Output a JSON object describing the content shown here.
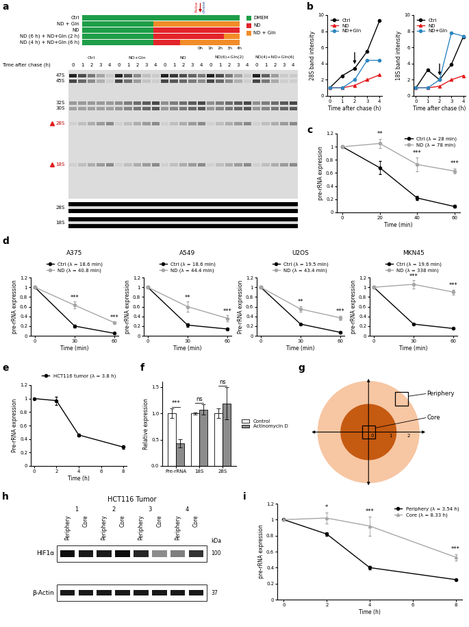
{
  "panel_labels": [
    "a",
    "b",
    "c",
    "d",
    "e",
    "f",
    "g",
    "h",
    "i"
  ],
  "gel": {
    "scheme_rows": [
      {
        "label": "Ctrl",
        "segments": [
          "DMEM"
        ]
      },
      {
        "label": "ND + Gln",
        "segments": [
          "DMEM",
          "ND + Gln"
        ]
      },
      {
        "label": "ND",
        "segments": [
          "DMEM",
          "ND"
        ]
      },
      {
        "label": "ND (6 h) + ND+Gln (2 h)",
        "segments": [
          "DMEM",
          "ND",
          "ND + Gln"
        ]
      },
      {
        "label": "ND (4 h) + ND+Gln (6 h)",
        "segments": [
          "DMEM",
          "ND",
          "ND + Gln"
        ]
      }
    ],
    "scheme_legend": [
      {
        "name": "DMEM",
        "color": "#1e9e48"
      },
      {
        "name": "ND",
        "color": "#e3242b"
      },
      {
        "name": "ND + Gln",
        "color": "#f28c28"
      }
    ],
    "pulse_label": "Pulse",
    "chase_label": "chase",
    "time_points": [
      "0h",
      "1h",
      "2h",
      "3h",
      "4h"
    ],
    "lane_axis_label": "Time after chase (h)",
    "groups": [
      "Ctrl",
      "ND+Gln",
      "ND",
      "ND(6)+Gln(2)",
      "ND(4)+ND+Gln(6)"
    ],
    "lanes": [
      "0",
      "1",
      "2",
      "3",
      "4"
    ],
    "bands": [
      "47S",
      "45S",
      "32S",
      "30S",
      "28S",
      "18S"
    ],
    "marked_bands": [
      "28S",
      "18S"
    ],
    "loading_strips": [
      "28S",
      "18S"
    ]
  },
  "chart_data": [
    {
      "type": "line",
      "xlabel": "Time after chase (h)",
      "ylabel": "28S band intensity",
      "x": [
        0,
        1,
        2,
        3,
        4
      ],
      "xlim": [
        -0.2,
        4.2
      ],
      "xticks": [
        0,
        1,
        2,
        3,
        4
      ],
      "ylim": [
        0,
        10
      ],
      "yticks": [
        0,
        2,
        4,
        6,
        8,
        10
      ],
      "legend": "upper left",
      "arrow_at": 2,
      "series": [
        {
          "name": "Ctrl",
          "color": "#000000",
          "marker": "circle",
          "values": [
            1,
            2.5,
            3.4,
            5.5,
            9.3
          ]
        },
        {
          "name": "ND",
          "color": "#e41a1c",
          "marker": "triangle",
          "values": [
            1,
            1,
            1.3,
            2,
            2.6
          ]
        },
        {
          "name": "ND+Gln",
          "color": "#2e86c1",
          "marker": "circle",
          "values": [
            1,
            1,
            2,
            4.4,
            4.4
          ]
        }
      ]
    },
    {
      "type": "line",
      "xlabel": "Time after chase (h)",
      "ylabel": "18S band intensity",
      "x": [
        0,
        1,
        2,
        3,
        4
      ],
      "xlim": [
        -0.2,
        4.2
      ],
      "xticks": [
        0,
        1,
        2,
        3,
        4
      ],
      "ylim": [
        0,
        10
      ],
      "yticks": [
        0,
        2,
        4,
        6,
        8,
        10
      ],
      "legend": "upper left",
      "arrow_at": 2,
      "series": [
        {
          "name": "Ctrl",
          "color": "#000000",
          "marker": "circle",
          "values": [
            1,
            3.2,
            2,
            3.9,
            7.3
          ]
        },
        {
          "name": "ND",
          "color": "#e41a1c",
          "marker": "triangle",
          "values": [
            1,
            1,
            1.2,
            2,
            2.5
          ]
        },
        {
          "name": "ND+Gln",
          "color": "#2e86c1",
          "marker": "circle",
          "values": [
            1,
            1,
            2,
            7.8,
            7.4
          ]
        }
      ]
    },
    {
      "type": "line",
      "xlabel": "Time (min)",
      "ylabel": "pre-rRNA expression",
      "x": [
        0,
        20,
        40,
        60
      ],
      "xlim": [
        -3,
        63
      ],
      "xticks": [
        0,
        20,
        40,
        60
      ],
      "ylim": [
        0,
        1.2
      ],
      "yticks": [
        0,
        0.2,
        0.4,
        0.6,
        0.8,
        1,
        1.2
      ],
      "legend": "upper right",
      "significance": [
        null,
        "**",
        "***",
        "***"
      ],
      "series": [
        {
          "name": "Ctrl (λ = 28 min)",
          "color": "#000000",
          "marker": "circle",
          "values": [
            1,
            0.68,
            0.22,
            0.09
          ],
          "errors": [
            0,
            0.1,
            0.03,
            0.02
          ]
        },
        {
          "name": "ND (λ = 78 min)",
          "color": "#a6a6a6",
          "marker": "circle",
          "values": [
            1,
            1.05,
            0.73,
            0.63
          ],
          "errors": [
            0,
            0.07,
            0.1,
            0.04
          ]
        }
      ]
    },
    {
      "type": "line",
      "title": "A375",
      "xlabel": "Time (min)",
      "ylabel": "pre-rRNA expression",
      "x": [
        0,
        30,
        60
      ],
      "xlim": [
        -3,
        63
      ],
      "xticks": [
        0,
        30,
        60
      ],
      "ylim": [
        0,
        1.2
      ],
      "yticks": [
        0,
        0.2,
        0.4,
        0.6,
        0.8,
        1,
        1.2
      ],
      "legend": "top",
      "significance": [
        null,
        "***",
        "***"
      ],
      "series": [
        {
          "name": "Ctrl (λ = 18.6 min)",
          "color": "#000000",
          "marker": "circle",
          "values": [
            1,
            0.2,
            0.05
          ],
          "errors": [
            0,
            0.03,
            0.01
          ]
        },
        {
          "name": "ND (λ = 40.8 min)",
          "color": "#a6a6a6",
          "marker": "circle",
          "values": [
            1,
            0.63,
            0.27
          ],
          "errors": [
            0,
            0.07,
            0.02
          ]
        }
      ]
    },
    {
      "type": "line",
      "title": "A549",
      "xlabel": "Time (min)",
      "ylabel": "pre-rRNA expression",
      "x": [
        0,
        30,
        60
      ],
      "xlim": [
        -3,
        63
      ],
      "xticks": [
        0,
        30,
        60
      ],
      "ylim": [
        0,
        1.2
      ],
      "yticks": [
        0,
        0.2,
        0.4,
        0.6,
        0.8,
        1,
        1.2
      ],
      "legend": "top",
      "significance": [
        null,
        "**",
        "***"
      ],
      "series": [
        {
          "name": "Ctrl (λ = 18.6 min)",
          "color": "#000000",
          "marker": "circle",
          "values": [
            1,
            0.22,
            0.14
          ],
          "errors": [
            0,
            0.04,
            0.02
          ]
        },
        {
          "name": "ND (λ = 44.4 min)",
          "color": "#a6a6a6",
          "marker": "circle",
          "values": [
            1,
            0.6,
            0.36
          ],
          "errors": [
            0,
            0.1,
            0.06
          ]
        }
      ]
    },
    {
      "type": "line",
      "title": "U2OS",
      "xlabel": "Time (min)",
      "ylabel": "Pre-rRNA expression",
      "x": [
        0,
        30,
        60
      ],
      "xlim": [
        -3,
        63
      ],
      "xticks": [
        0,
        30,
        60
      ],
      "ylim": [
        0,
        1.2
      ],
      "yticks": [
        0,
        0.2,
        0.4,
        0.6,
        0.8,
        1,
        1.2
      ],
      "legend": "top",
      "significance": [
        null,
        "**",
        "***"
      ],
      "series": [
        {
          "name": "Ctrl (λ = 19.5 min)",
          "color": "#000000",
          "marker": "circle",
          "values": [
            1,
            0.24,
            0.07
          ],
          "errors": [
            0,
            0.02,
            0.01
          ]
        },
        {
          "name": "ND (λ = 43.4 min)",
          "color": "#a6a6a6",
          "marker": "circle",
          "values": [
            1,
            0.55,
            0.37
          ],
          "errors": [
            0,
            0.06,
            0.04
          ]
        }
      ]
    },
    {
      "type": "line",
      "title": "MKN45",
      "xlabel": "Time (min)",
      "ylabel": "pre-rRNA expression",
      "x": [
        0,
        30,
        60
      ],
      "xlim": [
        -3,
        63
      ],
      "xticks": [
        0,
        30,
        60
      ],
      "ylim": [
        0,
        1.2
      ],
      "yticks": [
        0,
        0.2,
        0.4,
        0.6,
        0.8,
        1,
        1.2
      ],
      "legend": "top",
      "significance": [
        null,
        "***",
        "***"
      ],
      "series": [
        {
          "name": "Ctrl (λ = 19.6 min)",
          "color": "#000000",
          "marker": "circle",
          "values": [
            1,
            0.24,
            0.15
          ],
          "errors": [
            0,
            0.01,
            0.01
          ]
        },
        {
          "name": "ND (λ = 338 min)",
          "color": "#a6a6a6",
          "marker": "circle",
          "values": [
            1,
            1.06,
            0.9
          ],
          "errors": [
            0,
            0.08,
            0.05
          ]
        }
      ]
    },
    {
      "type": "line",
      "xlabel": "Time (h)",
      "ylabel": "Pre-rRNA expression",
      "x": [
        0,
        2,
        4,
        8
      ],
      "xlim": [
        -0.3,
        8.3
      ],
      "xticks": [
        0,
        2,
        4,
        6,
        8
      ],
      "ylim": [
        0,
        1.2
      ],
      "yticks": [
        0,
        0.2,
        0.4,
        0.6,
        0.8,
        1,
        1.2
      ],
      "legend": "top",
      "series": [
        {
          "name": "HCT116 tumor (λ = 3.8 h)",
          "color": "#000000",
          "marker": "circle",
          "values": [
            1,
            0.97,
            0.46,
            0.28
          ],
          "errors": [
            0,
            0.06,
            0.02,
            0.03
          ]
        }
      ]
    },
    {
      "type": "bar",
      "ylabel": "Relative expression",
      "categories": [
        "Pre-rRNA",
        "18S",
        "28S"
      ],
      "ylim": [
        0,
        1.6
      ],
      "yticks": [
        {
          "value": 0,
          "label": "0.0"
        },
        {
          "value": 0.5,
          "label": "0.5"
        },
        {
          "value": 1,
          "label": "1.0"
        },
        {
          "value": 1.5,
          "label": "1.5"
        }
      ],
      "legend": "right",
      "significance": [
        "***",
        "ns",
        "ns"
      ],
      "series": [
        {
          "name": "Control",
          "color": "#ffffff",
          "values": [
            1,
            1,
            1
          ],
          "errors": [
            0.09,
            0.02,
            0.09
          ]
        },
        {
          "name": "Actinomycin D",
          "color": "#8c8c8c",
          "values": [
            0.43,
            1.07,
            1.19
          ],
          "errors": [
            0.08,
            0.1,
            0.3
          ]
        }
      ]
    },
    {
      "type": "line",
      "xlabel": "Time (h)",
      "ylabel": "pre-rRNA expression",
      "x": [
        0,
        2,
        4,
        8
      ],
      "xlim": [
        -0.3,
        8.3
      ],
      "xticks": [
        0,
        2,
        4,
        6,
        8
      ],
      "ylim": [
        0,
        1.2
      ],
      "yticks": [
        0,
        0.2,
        0.4,
        0.6,
        0.8,
        1,
        1.2
      ],
      "legend": "upper right",
      "significance": [
        null,
        "*",
        "***",
        "***"
      ],
      "series": [
        {
          "name": "Periphery (λ = 3.54 h)",
          "color": "#000000",
          "marker": "circle",
          "values": [
            1,
            0.82,
            0.4,
            0.25
          ],
          "errors": [
            0,
            0.02,
            0.02,
            0.01
          ]
        },
        {
          "name": "Core (λ = 8.33 h)",
          "color": "#a6a6a6",
          "marker": "triangle",
          "values": [
            1,
            1.02,
            0.92,
            0.53
          ],
          "errors": [
            0,
            0.07,
            0.12,
            0.04
          ]
        }
      ]
    }
  ],
  "diagram": {
    "periphery": "Periphery",
    "core": "Core",
    "axis_marks": [
      "0",
      "1",
      "2"
    ]
  },
  "blot": {
    "title": "HCT116 Tumor",
    "tumors": [
      "1",
      "2",
      "3",
      "4"
    ],
    "regions": [
      "Periphery",
      "Core"
    ],
    "proteins": [
      "HIF1α",
      "β-Actin"
    ],
    "unit": "kDa",
    "markers": [
      100,
      37
    ]
  }
}
